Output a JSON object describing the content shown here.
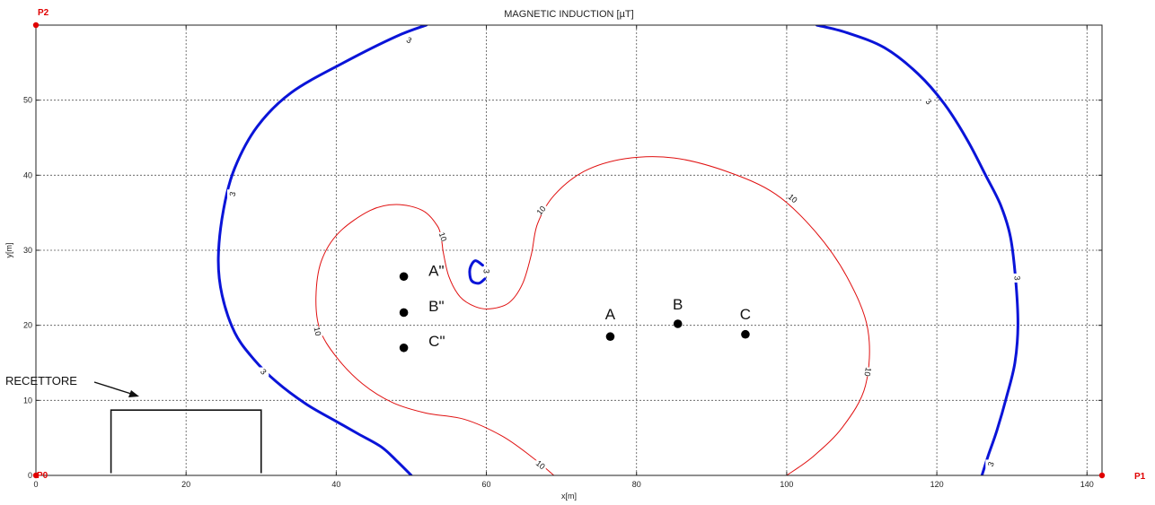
{
  "chart_data": {
    "type": "contour",
    "title": "MAGNETIC INDUCTION [µT]",
    "xlabel": "x[m]",
    "ylabel": "y[m]",
    "xlim": [
      0,
      142
    ],
    "ylim": [
      0,
      60
    ],
    "xticks": [
      0,
      20,
      40,
      60,
      80,
      100,
      120,
      140
    ],
    "yticks": [
      0,
      10,
      20,
      30,
      40,
      50
    ],
    "grid": true,
    "contours": [
      {
        "level": "3",
        "color": "#0a14d8",
        "lines": [
          [
            [
              52,
              60
            ],
            [
              48,
              58.5
            ],
            [
              41,
              55
            ],
            [
              34,
              51
            ],
            [
              29.5,
              46.5
            ],
            [
              26.5,
              41
            ],
            [
              25,
              35.5
            ],
            [
              24.3,
              29
            ],
            [
              24.8,
              24
            ],
            [
              26.5,
              19
            ],
            [
              29,
              15.5
            ],
            [
              32,
              12.5
            ],
            [
              36,
              9.5
            ],
            [
              40,
              7.2
            ],
            [
              43,
              5.5
            ],
            [
              46,
              3.8
            ],
            [
              48,
              2
            ],
            [
              50,
              0
            ]
          ],
          [
            [
              104,
              60
            ],
            [
              108,
              59
            ],
            [
              113,
              57
            ],
            [
              117.5,
              53.5
            ],
            [
              121,
              49.5
            ],
            [
              124,
              44.8
            ],
            [
              126.5,
              40
            ],
            [
              128.5,
              36
            ],
            [
              129.8,
              31.8
            ],
            [
              130.5,
              26
            ],
            [
              130.8,
              20
            ],
            [
              130.4,
              15
            ],
            [
              129.3,
              10.5
            ],
            [
              128,
              6
            ],
            [
              126.8,
              2.5
            ],
            [
              126,
              0
            ]
          ],
          [
            [
              59.5,
              28
            ],
            [
              58.5,
              28.6
            ],
            [
              57.8,
              27.5
            ],
            [
              58,
              26
            ],
            [
              59,
              25.6
            ],
            [
              59.8,
              26.2
            ]
          ]
        ],
        "labels": [
          {
            "x": 49.7,
            "y": 58,
            "text": "3",
            "angle": 30
          },
          {
            "x": 26.2,
            "y": 37.5,
            "text": "3",
            "angle": -78
          },
          {
            "x": 30.3,
            "y": 13.8,
            "text": "3",
            "angle": 48
          },
          {
            "x": 118.9,
            "y": 49.8,
            "text": "3",
            "angle": 50
          },
          {
            "x": 130.7,
            "y": 26.3,
            "text": "3",
            "angle": 85
          },
          {
            "x": 127.2,
            "y": 1.5,
            "text": "3",
            "angle": -72
          },
          {
            "x": 60,
            "y": 27.2,
            "text": "3",
            "angle": 90
          }
        ]
      },
      {
        "level": "10",
        "color": "#e01010",
        "lines": [
          [
            [
              54.2,
              30
            ],
            [
              54,
              31.5
            ],
            [
              53.5,
              33.2
            ],
            [
              51.5,
              35.3
            ],
            [
              48,
              36.1
            ],
            [
              44.5,
              35.3
            ],
            [
              40.3,
              32.3
            ],
            [
              38,
              28.5
            ],
            [
              37.3,
              23.8
            ],
            [
              37.8,
              19.5
            ],
            [
              40,
              15.8
            ],
            [
              43.5,
              12.2
            ],
            [
              47.5,
              9.7
            ],
            [
              52,
              8.3
            ],
            [
              57,
              7.5
            ],
            [
              62,
              5.3
            ],
            [
              66,
              2.5
            ],
            [
              69,
              0
            ]
          ],
          [
            [
              54.2,
              30
            ],
            [
              55,
              26.5
            ],
            [
              56.5,
              23.8
            ],
            [
              58.5,
              22.5
            ],
            [
              60.5,
              22.2
            ],
            [
              63,
              23
            ],
            [
              64.8,
              25.5
            ],
            [
              66,
              29.5
            ],
            [
              66.8,
              33.5
            ],
            [
              69,
              37.3
            ],
            [
              73,
              40.5
            ],
            [
              78.5,
              42.2
            ],
            [
              85,
              42.3
            ],
            [
              92,
              40.5
            ],
            [
              98.5,
              37.5
            ],
            [
              103.8,
              32.5
            ],
            [
              108,
              26.5
            ],
            [
              110.8,
              19.5
            ],
            [
              110.5,
              12
            ],
            [
              107.5,
              6.5
            ],
            [
              103.5,
              2.5
            ],
            [
              100,
              0
            ]
          ]
        ],
        "labels": [
          {
            "x": 54.2,
            "y": 31.8,
            "text": "10",
            "angle": 72
          },
          {
            "x": 67.3,
            "y": 35.3,
            "text": "10",
            "angle": -50
          },
          {
            "x": 37.5,
            "y": 19.2,
            "text": "10",
            "angle": 78
          },
          {
            "x": 67.2,
            "y": 1.4,
            "text": "10",
            "angle": 38
          },
          {
            "x": 100.8,
            "y": 36.9,
            "text": "10",
            "angle": 40
          },
          {
            "x": 110.8,
            "y": 13.8,
            "text": "10",
            "angle": 100
          }
        ]
      }
    ],
    "points": [
      {
        "name": "A\"",
        "x": 49,
        "y": 26.5,
        "label_x": 52.3,
        "label_y": 27.3
      },
      {
        "name": "B\"",
        "x": 49,
        "y": 21.7,
        "label_x": 52.3,
        "label_y": 22.6
      },
      {
        "name": "C\"",
        "x": 49,
        "y": 17,
        "label_x": 52.3,
        "label_y": 17.9
      },
      {
        "name": "A",
        "x": 76.5,
        "y": 18.5,
        "label_x": 76.5,
        "label_y": 21.5
      },
      {
        "name": "B",
        "x": 85.5,
        "y": 20.2,
        "label_x": 85.5,
        "label_y": 22.8
      },
      {
        "name": "C",
        "x": 94.5,
        "y": 18.8,
        "label_x": 94.5,
        "label_y": 21.5
      }
    ],
    "corner_points": [
      {
        "name": "P2",
        "x": 0,
        "y": 60
      },
      {
        "name": "P0",
        "x": 0,
        "y": 0
      },
      {
        "name": "P1",
        "x": 142,
        "y": 0
      }
    ],
    "receiver": {
      "label": "RECETTORE",
      "x1": 10,
      "x2": 30,
      "y_top": 8.7,
      "y_bottom": 0.3
    }
  },
  "colors": {
    "contour_3": "#0a14d8",
    "contour_10": "#e01010",
    "corner_points": "#e00000"
  }
}
